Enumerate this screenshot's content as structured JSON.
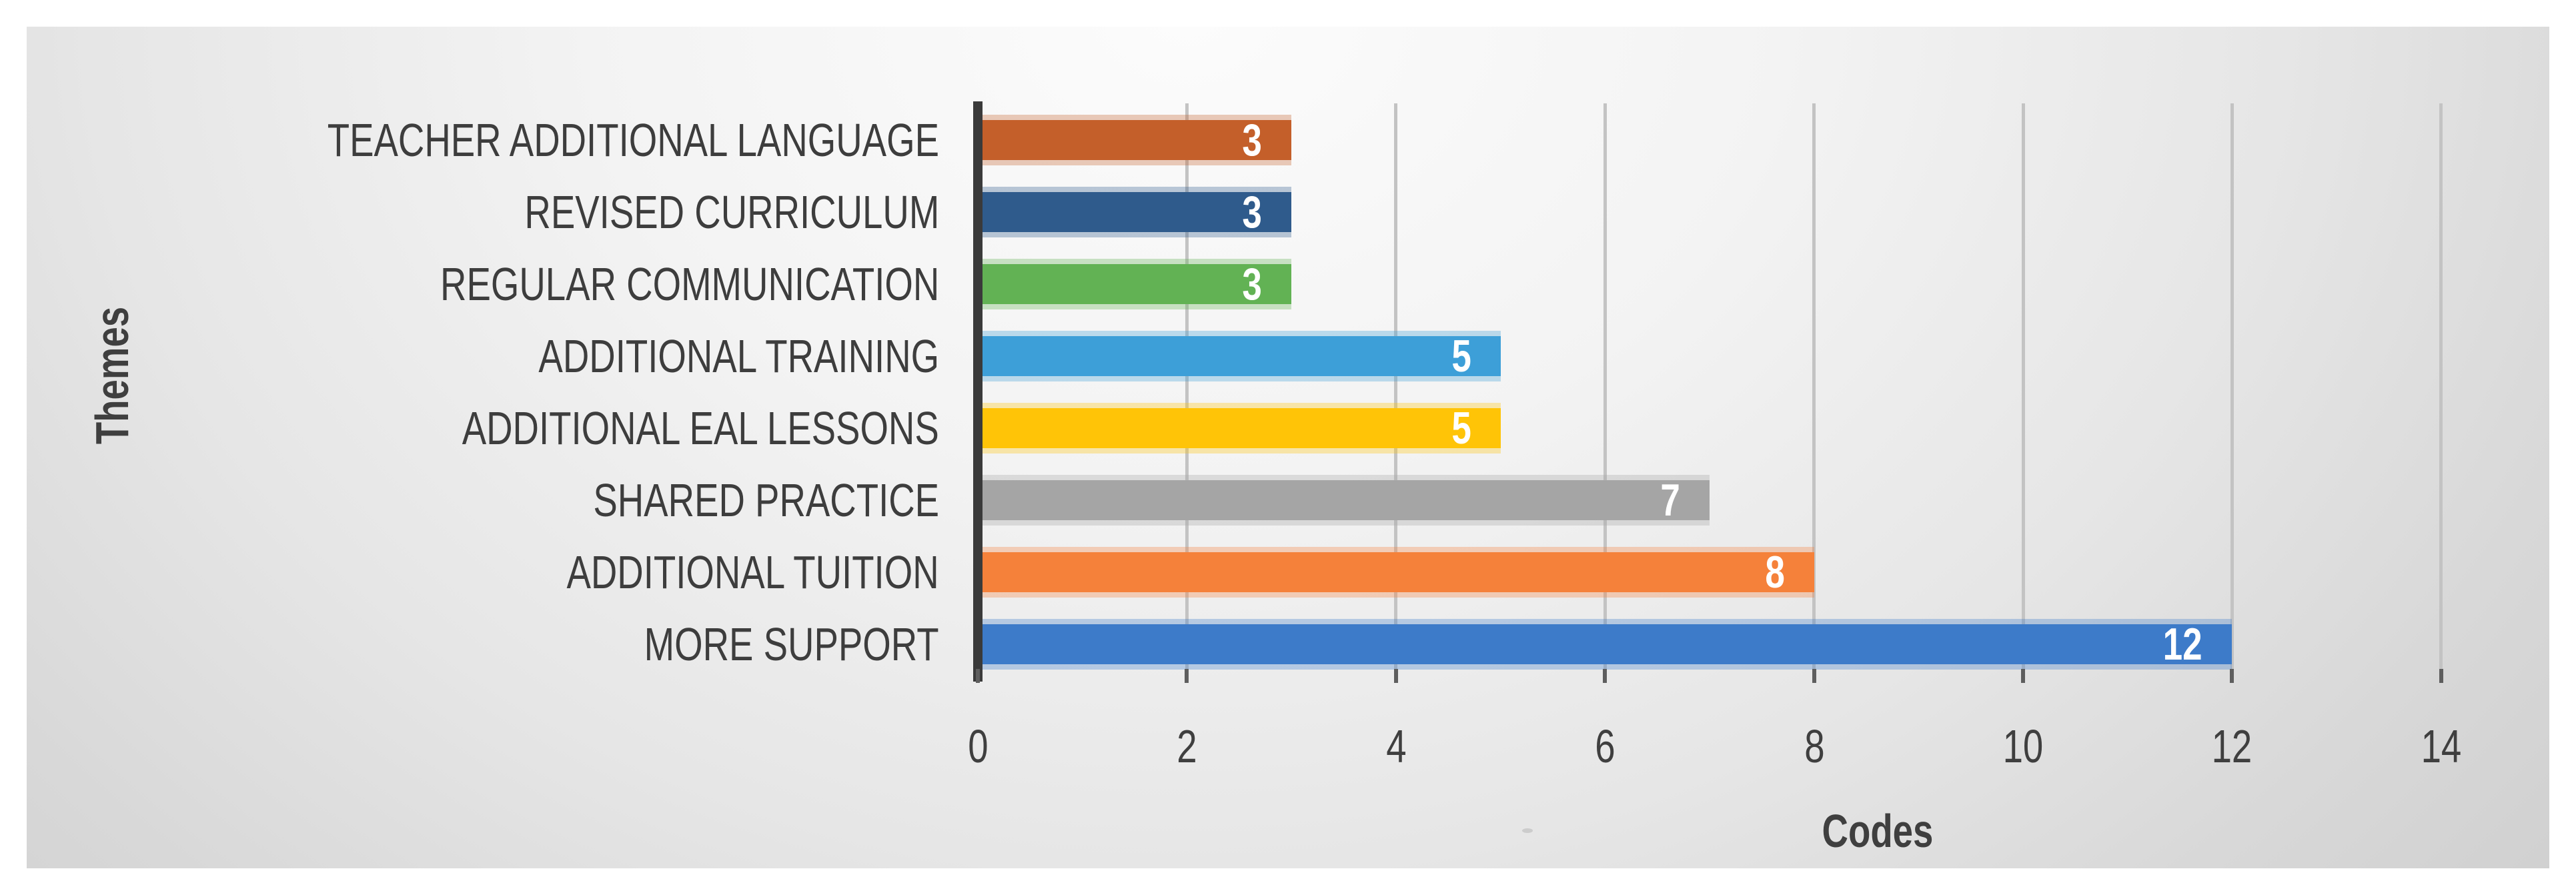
{
  "chart_data": {
    "type": "bar",
    "orientation": "horizontal",
    "title": "",
    "xlabel": "Codes",
    "ylabel": "Themes",
    "categories": [
      "TEACHER ADDITIONAL LANGUAGE",
      "REVISED CURRICULUM",
      "REGULAR COMMUNICATION",
      "ADDITIONAL TRAINING",
      "ADDITIONAL EAL LESSONS",
      "SHARED PRACTICE",
      "ADDITIONAL TUITION",
      "MORE SUPPORT"
    ],
    "values": [
      3,
      3,
      3,
      5,
      5,
      7,
      8,
      12
    ],
    "data_labels": [
      "3",
      "3",
      "3",
      "5",
      "5",
      "7",
      "8",
      "12"
    ],
    "bar_colors": [
      "#C45F2A",
      "#2F5B8C",
      "#62B254",
      "#3D9FD8",
      "#FFC407",
      "#A5A5A5",
      "#F5813A",
      "#3D7BC9"
    ],
    "xlim": [
      0,
      14
    ],
    "x_ticks": [
      "0",
      "2",
      "4",
      "6",
      "8",
      "10",
      "12",
      "14"
    ],
    "grid": true,
    "legend": false,
    "value_label_style": "white bold, inside bar end"
  },
  "colors": {
    "axis_line": "#3A3A3A",
    "gridline": "#C3C3C3",
    "tick_mark": "#5E5E5E",
    "label_text": "#3D3D3D",
    "value_label_text": "#FFFFFF",
    "panel_background_light": "#FCFCFC",
    "panel_background_dark": "#D0D0D0",
    "page_background": "#FFFFFF"
  }
}
